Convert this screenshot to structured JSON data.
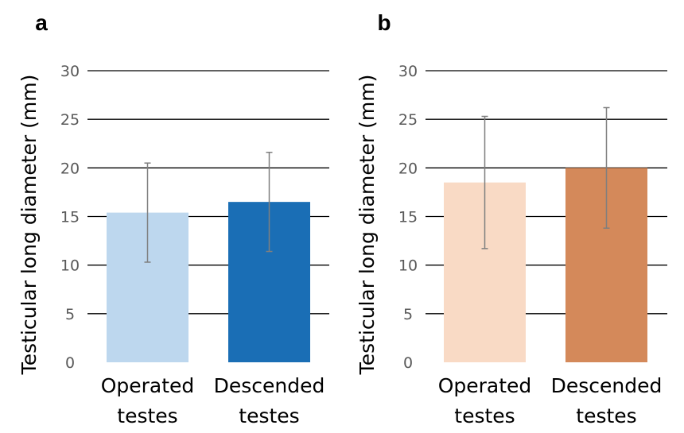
{
  "chart_data": [
    {
      "type": "bar",
      "panel_label": "a",
      "ylabel": "Testicular long diameter (mm)",
      "xlabel": "",
      "ylim": [
        0,
        30
      ],
      "yticks": [
        0,
        5,
        10,
        15,
        20,
        25,
        30
      ],
      "grid": true,
      "categories": [
        {
          "line1": "Operated",
          "line2": "testes"
        },
        {
          "line1": "Descended",
          "line2": "testes"
        }
      ],
      "values": [
        15.4,
        16.5
      ],
      "error": [
        5.1,
        5.1
      ],
      "colors": [
        "#bdd7ee",
        "#1a6eb5"
      ]
    },
    {
      "type": "bar",
      "panel_label": "b",
      "ylabel": "Testicular long diameter (mm)",
      "xlabel": "",
      "ylim": [
        0,
        30
      ],
      "yticks": [
        0,
        5,
        10,
        15,
        20,
        25,
        30
      ],
      "grid": true,
      "categories": [
        {
          "line1": "Operated",
          "line2": "testes"
        },
        {
          "line1": "Descended",
          "line2": "testes"
        }
      ],
      "values": [
        18.5,
        20.0
      ],
      "error": [
        6.8,
        6.2
      ],
      "colors": [
        "#f9dac5",
        "#d4895a"
      ]
    }
  ]
}
